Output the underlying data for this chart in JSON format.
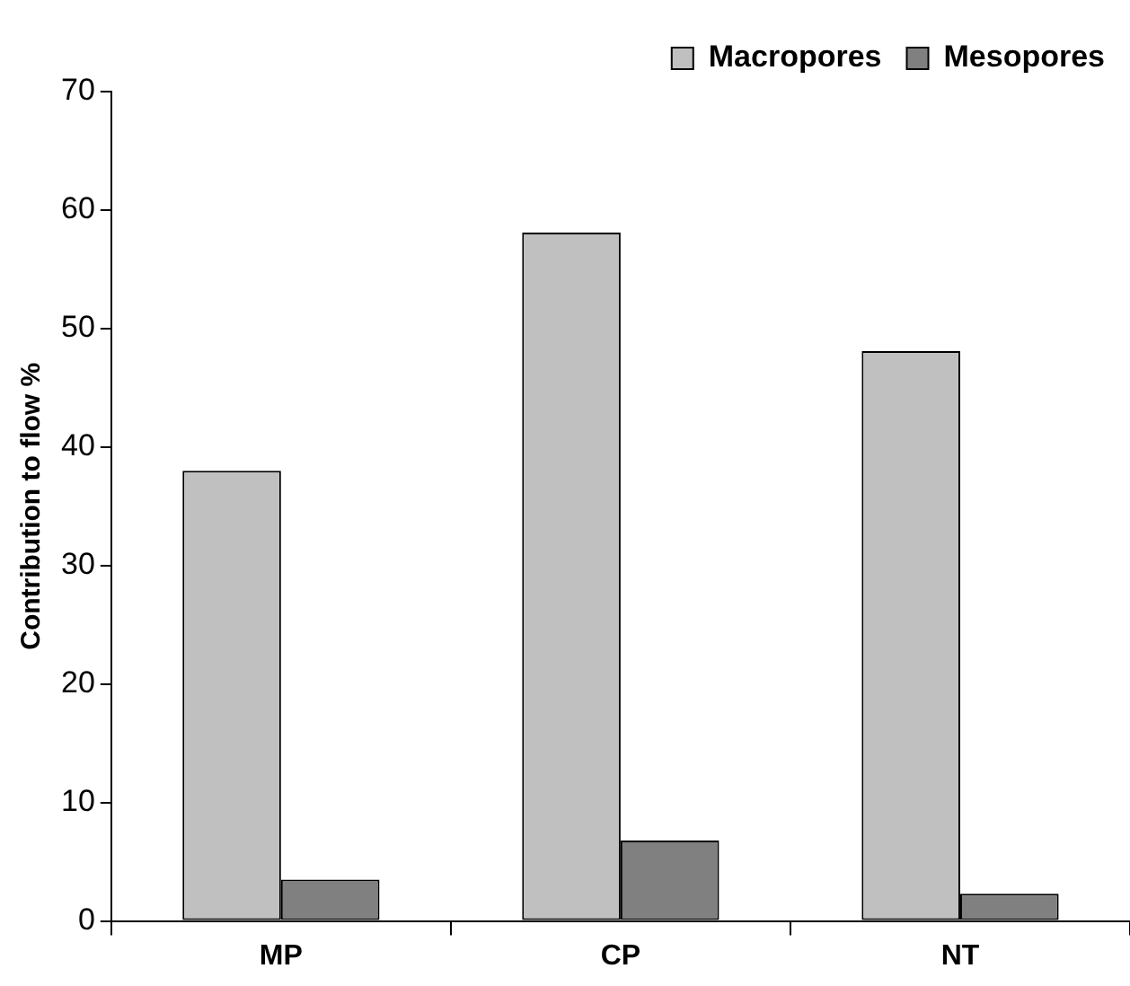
{
  "chart_data": {
    "type": "bar",
    "ylabel": "Contribution to flow %",
    "categories": [
      "MP",
      "CP",
      "NT"
    ],
    "series": [
      {
        "name": "Macropores",
        "color": "#c0c0c0",
        "values": [
          38,
          58.1,
          48.1
        ]
      },
      {
        "name": "Mesopores",
        "color": "#808080",
        "values": [
          3.5,
          6.8,
          2.3
        ]
      }
    ],
    "ylim": [
      0,
      70
    ],
    "yticks": [
      0,
      10,
      20,
      30,
      40,
      50,
      60,
      70
    ],
    "grid": false,
    "legend": "top right"
  }
}
